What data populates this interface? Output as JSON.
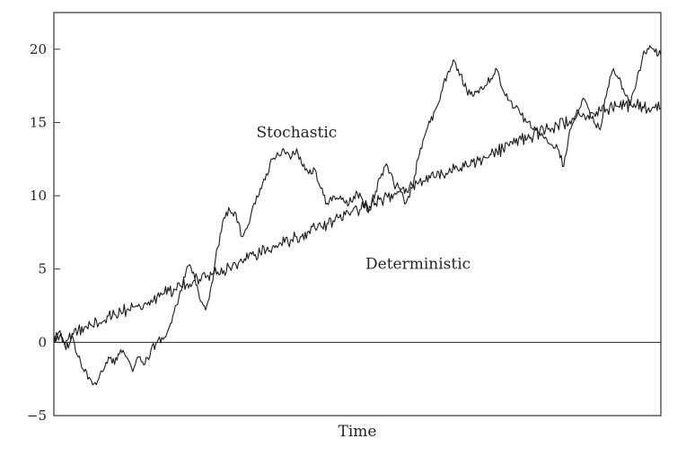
{
  "chart_data": {
    "type": "line",
    "title": "",
    "xlabel": "Time",
    "ylabel": "",
    "ylim": [
      -5,
      22.5
    ],
    "xlim": [
      0,
      100
    ],
    "yticks": [
      -5,
      0,
      5,
      10,
      15,
      20
    ],
    "ytick_labels": [
      "−5",
      "0",
      "5",
      "10",
      "15",
      "20"
    ],
    "grid": false,
    "legend": "none",
    "zero_line": true,
    "annotations": [
      {
        "text": "Stochastic",
        "x": 40,
        "y": 14
      },
      {
        "text": "Deterministic",
        "x": 60,
        "y": 5
      }
    ],
    "series": [
      {
        "x": [
          0,
          1,
          2,
          3,
          4,
          5,
          6,
          7,
          8,
          9,
          10,
          11,
          12,
          13,
          14,
          15,
          16,
          17,
          18,
          19,
          20,
          21,
          22,
          23,
          24,
          25,
          26,
          27,
          28,
          29,
          30,
          31,
          32,
          33,
          34,
          35,
          36,
          37,
          38,
          39,
          40,
          41,
          42,
          43,
          44,
          45,
          46,
          47,
          48,
          49,
          50,
          51,
          52,
          53,
          54,
          55,
          56,
          57,
          58,
          59,
          60,
          61,
          62,
          63,
          64,
          65,
          66,
          67,
          68,
          69,
          70,
          71,
          72,
          73,
          74,
          75,
          76,
          77,
          78,
          79,
          80,
          81,
          82,
          83,
          84,
          85,
          86,
          87,
          88,
          89,
          90,
          91,
          92,
          93,
          94,
          95,
          96,
          97,
          98,
          99,
          100
        ],
        "values": [
          0.3,
          0.5,
          0.1,
          0.6,
          0.8,
          1.0,
          1.2,
          1.5,
          1.4,
          1.8,
          1.9,
          2.1,
          2.2,
          2.4,
          2.6,
          2.7,
          2.9,
          3.1,
          3.3,
          3.5,
          3.6,
          3.8,
          4.0,
          4.2,
          4.3,
          4.4,
          4.6,
          4.8,
          4.9,
          5.1,
          5.3,
          5.5,
          5.7,
          5.9,
          6.1,
          6.3,
          6.5,
          6.6,
          6.8,
          7.0,
          7.2,
          7.4,
          7.6,
          7.8,
          7.9,
          8.1,
          8.3,
          8.5,
          8.7,
          8.9,
          9.0,
          9.2,
          9.3,
          9.5,
          9.7,
          9.9,
          10.1,
          10.3,
          10.5,
          10.7,
          10.8,
          11.0,
          11.2,
          11.3,
          11.5,
          11.6,
          11.8,
          11.9,
          12.1,
          12.3,
          12.4,
          12.6,
          12.8,
          13.0,
          13.2,
          13.4,
          13.6,
          13.8,
          13.9,
          14.1,
          14.3,
          14.5,
          14.6,
          14.8,
          14.9,
          15.1,
          15.3,
          15.4,
          15.5,
          15.6,
          15.8,
          15.9,
          16.0,
          16.1,
          16.1,
          16.2,
          16.2,
          16.1,
          16.0,
          16.0,
          16.0
        ]
      },
      {
        "x": [
          0,
          1,
          2,
          3,
          4,
          5,
          6,
          7,
          8,
          9,
          10,
          11,
          12,
          13,
          14,
          15,
          16,
          17,
          18,
          19,
          20,
          21,
          22,
          23,
          24,
          25,
          26,
          27,
          28,
          29,
          30,
          31,
          32,
          33,
          34,
          35,
          36,
          37,
          38,
          39,
          40,
          41,
          42,
          43,
          44,
          45,
          46,
          47,
          48,
          49,
          50,
          51,
          52,
          53,
          54,
          55,
          56,
          57,
          58,
          59,
          60,
          61,
          62,
          63,
          64,
          65,
          66,
          67,
          68,
          69,
          70,
          71,
          72,
          73,
          74,
          75,
          76,
          77,
          78,
          79,
          80,
          81,
          82,
          83,
          84,
          85,
          86,
          87,
          88,
          89,
          90,
          91,
          92,
          93,
          94,
          95,
          96,
          97,
          98,
          99,
          100
        ],
        "values": [
          0.0,
          0.8,
          -0.5,
          0.5,
          -1.0,
          -2.0,
          -2.5,
          -2.9,
          -2.0,
          -1.0,
          -1.5,
          -0.5,
          -1.0,
          -2.0,
          -1.0,
          -1.5,
          -0.5,
          0.0,
          0.2,
          1.0,
          2.5,
          3.5,
          5.2,
          4.8,
          3.0,
          2.2,
          4.0,
          6.5,
          8.5,
          9.0,
          8.8,
          7.2,
          8.0,
          9.5,
          10.5,
          11.5,
          12.5,
          12.8,
          13.0,
          12.5,
          13.2,
          12.0,
          11.5,
          11.8,
          10.5,
          9.5,
          10.0,
          9.8,
          9.5,
          9.6,
          10.2,
          9.5,
          9.0,
          10.3,
          11.5,
          12.0,
          10.8,
          10.5,
          9.5,
          10.5,
          12.5,
          14.0,
          15.0,
          16.0,
          17.2,
          18.5,
          19.2,
          18.3,
          17.2,
          16.8,
          17.0,
          17.5,
          18.0,
          18.6,
          17.2,
          16.5,
          16.0,
          15.5,
          15.0,
          14.5,
          14.3,
          14.0,
          13.5,
          13.2,
          12.0,
          14.5,
          15.5,
          16.5,
          16.0,
          15.0,
          14.5,
          16.8,
          18.5,
          18.0,
          17.0,
          16.2,
          17.8,
          19.5,
          20.0,
          19.8,
          19.6
        ]
      }
    ]
  }
}
